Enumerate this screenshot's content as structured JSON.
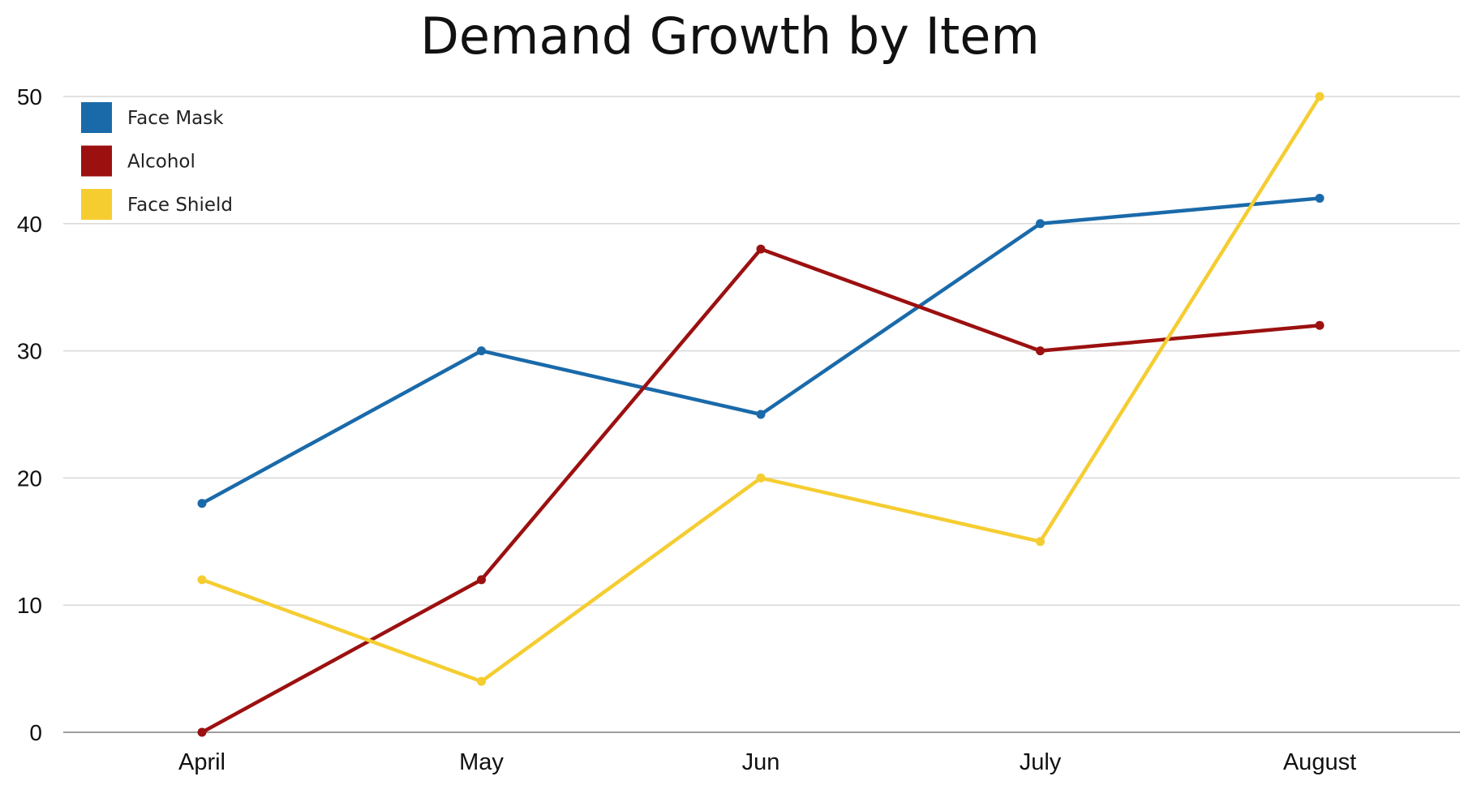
{
  "chart_data": {
    "type": "line",
    "title": "Demand Growth by Item",
    "xlabel": "",
    "ylabel": "",
    "categories": [
      "April",
      "May",
      "Jun",
      "July",
      "August"
    ],
    "ylim": [
      0,
      50
    ],
    "yticks": [
      0,
      10,
      20,
      30,
      40,
      50
    ],
    "grid": true,
    "legend_position": "top-left",
    "series": [
      {
        "name": "Face Mask",
        "color": "#1a6aaa",
        "values": [
          18,
          30,
          25,
          40,
          42
        ]
      },
      {
        "name": "Alcohol",
        "color": "#9c1010",
        "values": [
          0,
          12,
          38,
          30,
          32
        ]
      },
      {
        "name": "Face Shield",
        "color": "#f5cd31",
        "values": [
          12,
          4,
          20,
          15,
          50
        ]
      }
    ]
  }
}
